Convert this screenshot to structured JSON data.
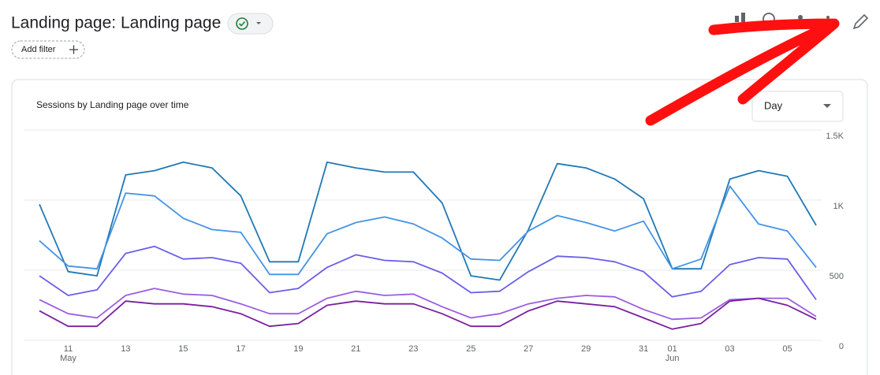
{
  "header": {
    "title": "Landing page: Landing page",
    "add_filter": "Add filter"
  },
  "card": {
    "title": "Sessions by Landing page over time",
    "granularity": "Day"
  },
  "chart_data": {
    "type": "line",
    "categories": [
      null,
      "11",
      null,
      "13",
      null,
      "15",
      null,
      "17",
      null,
      "19",
      null,
      "21",
      null,
      "23",
      null,
      "25",
      null,
      "27",
      null,
      "29",
      null,
      "31",
      "01",
      null,
      "03",
      null,
      "05",
      null
    ],
    "month_labels": [
      "May",
      "Jun"
    ],
    "ylim": [
      0,
      1500
    ],
    "yticks": [
      0,
      500,
      {
        "value": 1000,
        "label": "1K"
      },
      {
        "value": 1500,
        "label": "1.5K"
      }
    ],
    "grid": true,
    "series": [
      {
        "color": "#1f78b4",
        "values": [
          970,
          490,
          460,
          1180,
          1210,
          1270,
          1230,
          1030,
          560,
          560,
          1270,
          1230,
          1200,
          1200,
          980,
          460,
          430,
          790,
          1260,
          1230,
          1150,
          1010,
          510,
          510,
          1150,
          1210,
          1170,
          820
        ]
      },
      {
        "color": "#4593e5",
        "values": [
          710,
          530,
          510,
          1050,
          1030,
          870,
          790,
          770,
          470,
          470,
          760,
          840,
          880,
          830,
          730,
          580,
          570,
          780,
          890,
          840,
          780,
          850,
          510,
          580,
          1100,
          830,
          780,
          520
        ]
      },
      {
        "color": "#6a5ee8",
        "values": [
          460,
          320,
          360,
          620,
          670,
          580,
          590,
          550,
          340,
          370,
          520,
          610,
          570,
          560,
          480,
          340,
          350,
          490,
          600,
          590,
          560,
          490,
          310,
          350,
          540,
          590,
          580,
          290
        ]
      },
      {
        "color": "#9a5ee0",
        "values": [
          290,
          190,
          160,
          320,
          370,
          330,
          320,
          260,
          190,
          190,
          300,
          350,
          320,
          330,
          240,
          160,
          190,
          260,
          300,
          320,
          310,
          220,
          150,
          160,
          290,
          300,
          300,
          170
        ]
      },
      {
        "color": "#7a1fa0",
        "values": [
          210,
          100,
          100,
          280,
          260,
          260,
          240,
          190,
          100,
          120,
          250,
          280,
          260,
          260,
          190,
          100,
          100,
          210,
          280,
          260,
          240,
          160,
          80,
          120,
          280,
          300,
          250,
          150
        ]
      }
    ]
  }
}
